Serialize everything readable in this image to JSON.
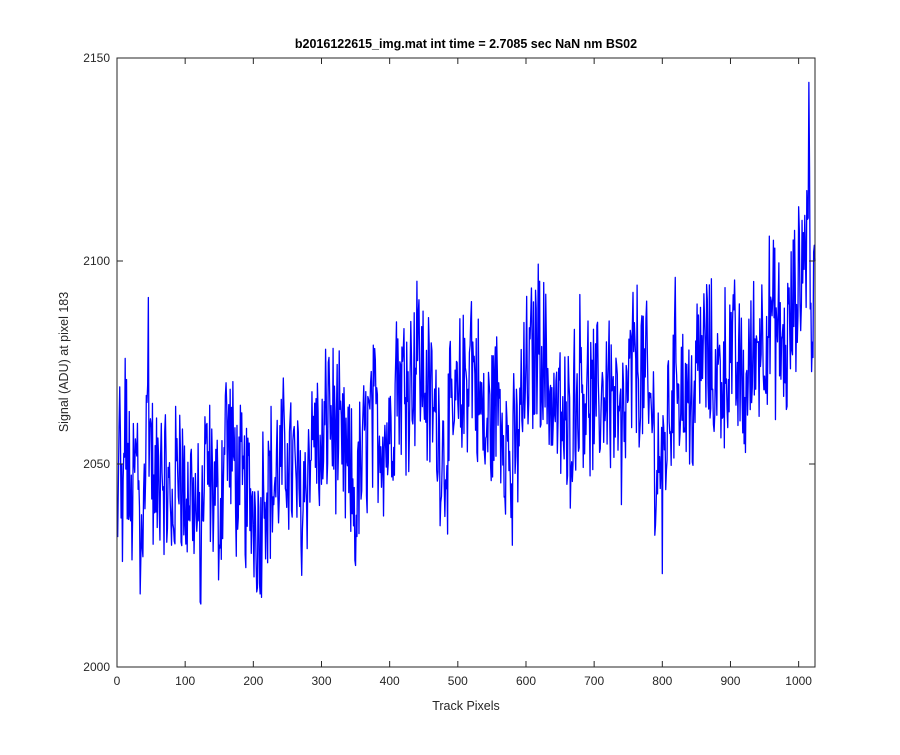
{
  "chart_data": {
    "type": "line",
    "title": "b2016122615_img.mat int time = 2.7085 sec  NaN nm BS02",
    "xlabel": "Track Pixels",
    "ylabel": "Signal (ADU) at pixel 183",
    "xlim": [
      0,
      1024
    ],
    "ylim": [
      2000,
      2150
    ],
    "x_ticks": [
      "0",
      "100",
      "200",
      "300",
      "400",
      "500",
      "600",
      "700",
      "800",
      "900",
      "1000"
    ],
    "y_ticks": [
      "2000",
      "2050",
      "2100",
      "2150"
    ],
    "grid": false,
    "legend": "none",
    "series": [
      {
        "color": "#0000ff",
        "x_start": 1,
        "x_step": 1,
        "count": 1024,
        "trend": "noisy signal rising roughly from about 2040 at pixel 0 to about 2085 at pixel 1024, sampled points listed below",
        "points": [
          [
            1,
            2032
          ],
          [
            4,
            2069
          ],
          [
            8,
            2026
          ],
          [
            12,
            2076
          ],
          [
            20,
            2036
          ],
          [
            30,
            2060
          ],
          [
            34,
            2018
          ],
          [
            40,
            2050
          ],
          [
            46,
            2091
          ],
          [
            55,
            2038
          ],
          [
            65,
            2060
          ],
          [
            80,
            2030
          ],
          [
            92,
            2062
          ],
          [
            100,
            2035
          ],
          [
            110,
            2045
          ],
          [
            122,
            2016
          ],
          [
            130,
            2055
          ],
          [
            150,
            2030
          ],
          [
            160,
            2070
          ],
          [
            180,
            2040
          ],
          [
            200,
            2032
          ],
          [
            210,
            2018
          ],
          [
            215,
            2045
          ],
          [
            230,
            2040
          ],
          [
            250,
            2055
          ],
          [
            270,
            2030
          ],
          [
            290,
            2065
          ],
          [
            300,
            2045
          ],
          [
            310,
            2075
          ],
          [
            330,
            2050
          ],
          [
            350,
            2025
          ],
          [
            370,
            2065
          ],
          [
            400,
            2055
          ],
          [
            410,
            2085
          ],
          [
            425,
            2080
          ],
          [
            440,
            2095
          ],
          [
            460,
            2070
          ],
          [
            480,
            2045
          ],
          [
            500,
            2065
          ],
          [
            520,
            2090
          ],
          [
            540,
            2050
          ],
          [
            560,
            2070
          ],
          [
            580,
            2030
          ],
          [
            600,
            2075
          ],
          [
            620,
            2095
          ],
          [
            640,
            2060
          ],
          [
            660,
            2045
          ],
          [
            680,
            2075
          ],
          [
            700,
            2055
          ],
          [
            720,
            2070
          ],
          [
            740,
            2040
          ],
          [
            760,
            2080
          ],
          [
            780,
            2060
          ],
          [
            790,
            2035
          ],
          [
            800,
            2023
          ],
          [
            820,
            2075
          ],
          [
            840,
            2050
          ],
          [
            860,
            2080
          ],
          [
            880,
            2062
          ],
          [
            900,
            2075
          ],
          [
            920,
            2055
          ],
          [
            940,
            2080
          ],
          [
            960,
            2090
          ],
          [
            980,
            2070
          ],
          [
            995,
            2095
          ],
          [
            1005,
            2110
          ],
          [
            1015,
            2144
          ],
          [
            1020,
            2080
          ],
          [
            1024,
            2100
          ]
        ]
      }
    ]
  }
}
